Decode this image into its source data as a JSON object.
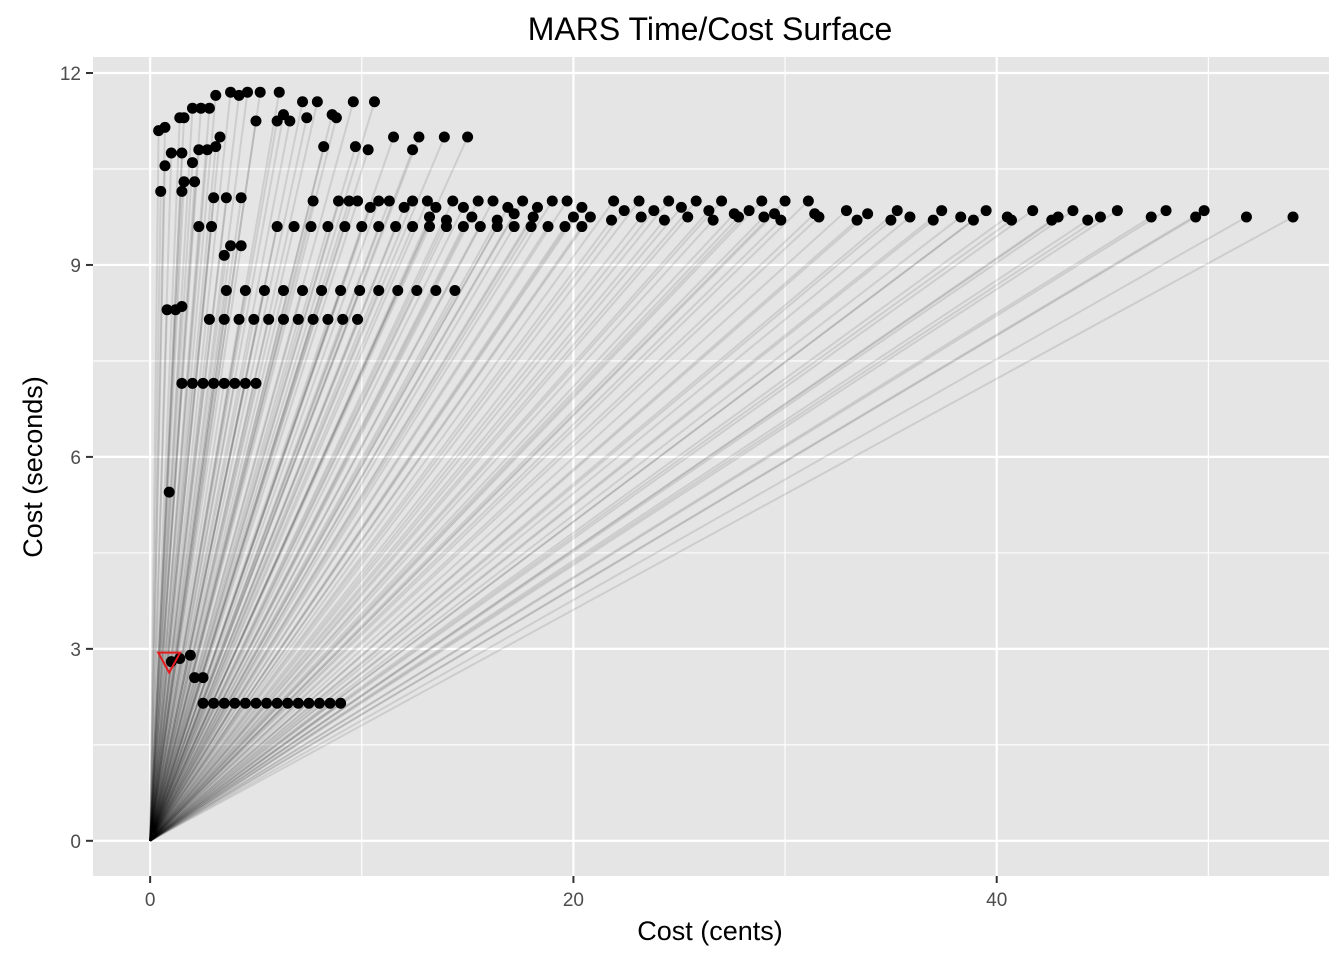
{
  "chart_data": {
    "type": "scatter",
    "title": "MARS Time/Cost Surface",
    "xlabel": "Cost (cents)",
    "ylabel": "Cost (seconds)",
    "xlim": [
      -2.7,
      55.7
    ],
    "ylim": [
      -0.55,
      12.25
    ],
    "x_ticks": [
      0,
      20,
      40
    ],
    "y_ticks": [
      0,
      3,
      6,
      9,
      12
    ],
    "grid": true,
    "legend": "none",
    "colors": {
      "panel": "#e5e5e5",
      "grid": "#ffffff",
      "point": "#000000",
      "segment": "#000000",
      "highlight": "#e41a1c"
    },
    "segment_origin": [
      0,
      0
    ],
    "highlight": {
      "shape": "down-triangle",
      "x": 0.9,
      "y": 2.8
    },
    "series": [
      {
        "values": [
          {
            "x": 1.0,
            "y": 2.8
          },
          {
            "x": 1.4,
            "y": 2.85
          },
          {
            "x": 1.9,
            "y": 2.9
          },
          {
            "x": 2.1,
            "y": 2.55
          },
          {
            "x": 2.5,
            "y": 2.55
          },
          {
            "x": 2.5,
            "y": 2.15
          },
          {
            "x": 3.0,
            "y": 2.15
          },
          {
            "x": 3.5,
            "y": 2.15
          },
          {
            "x": 4.0,
            "y": 2.15
          },
          {
            "x": 4.5,
            "y": 2.15
          },
          {
            "x": 5.0,
            "y": 2.15
          },
          {
            "x": 5.5,
            "y": 2.15
          },
          {
            "x": 6.0,
            "y": 2.15
          },
          {
            "x": 6.5,
            "y": 2.15
          },
          {
            "x": 7.0,
            "y": 2.15
          },
          {
            "x": 7.5,
            "y": 2.15
          },
          {
            "x": 8.0,
            "y": 2.15
          },
          {
            "x": 8.5,
            "y": 2.15
          },
          {
            "x": 9.0,
            "y": 2.15
          },
          {
            "x": 0.9,
            "y": 5.45
          },
          {
            "x": 1.5,
            "y": 7.15
          },
          {
            "x": 2.0,
            "y": 7.15
          },
          {
            "x": 2.5,
            "y": 7.15
          },
          {
            "x": 3.0,
            "y": 7.15
          },
          {
            "x": 3.5,
            "y": 7.15
          },
          {
            "x": 4.0,
            "y": 7.15
          },
          {
            "x": 4.5,
            "y": 7.15
          },
          {
            "x": 5.0,
            "y": 7.15
          },
          {
            "x": 0.8,
            "y": 8.3
          },
          {
            "x": 1.2,
            "y": 8.3
          },
          {
            "x": 1.5,
            "y": 8.35
          },
          {
            "x": 2.8,
            "y": 8.15
          },
          {
            "x": 3.5,
            "y": 8.15
          },
          {
            "x": 4.2,
            "y": 8.15
          },
          {
            "x": 4.9,
            "y": 8.15
          },
          {
            "x": 5.6,
            "y": 8.15
          },
          {
            "x": 6.3,
            "y": 8.15
          },
          {
            "x": 7.0,
            "y": 8.15
          },
          {
            "x": 7.7,
            "y": 8.15
          },
          {
            "x": 8.4,
            "y": 8.15
          },
          {
            "x": 9.1,
            "y": 8.15
          },
          {
            "x": 9.8,
            "y": 8.15
          },
          {
            "x": 3.6,
            "y": 8.6
          },
          {
            "x": 4.5,
            "y": 8.6
          },
          {
            "x": 5.4,
            "y": 8.6
          },
          {
            "x": 6.3,
            "y": 8.6
          },
          {
            "x": 7.2,
            "y": 8.6
          },
          {
            "x": 8.1,
            "y": 8.6
          },
          {
            "x": 9.0,
            "y": 8.6
          },
          {
            "x": 9.9,
            "y": 8.6
          },
          {
            "x": 10.8,
            "y": 8.6
          },
          {
            "x": 11.7,
            "y": 8.6
          },
          {
            "x": 12.6,
            "y": 8.6
          },
          {
            "x": 13.5,
            "y": 8.6
          },
          {
            "x": 14.4,
            "y": 8.6
          },
          {
            "x": 3.5,
            "y": 9.15
          },
          {
            "x": 3.8,
            "y": 9.3
          },
          {
            "x": 4.3,
            "y": 9.3
          },
          {
            "x": 2.3,
            "y": 9.6
          },
          {
            "x": 2.9,
            "y": 9.6
          },
          {
            "x": 0.5,
            "y": 10.15
          },
          {
            "x": 1.5,
            "y": 10.15
          },
          {
            "x": 1.6,
            "y": 10.3
          },
          {
            "x": 2.1,
            "y": 10.3
          },
          {
            "x": 3.0,
            "y": 10.05
          },
          {
            "x": 3.6,
            "y": 10.05
          },
          {
            "x": 4.3,
            "y": 10.05
          },
          {
            "x": 0.7,
            "y": 10.55
          },
          {
            "x": 1.0,
            "y": 10.75
          },
          {
            "x": 1.5,
            "y": 10.75
          },
          {
            "x": 2.0,
            "y": 10.6
          },
          {
            "x": 2.3,
            "y": 10.8
          },
          {
            "x": 2.7,
            "y": 10.8
          },
          {
            "x": 3.1,
            "y": 10.85
          },
          {
            "x": 3.3,
            "y": 11.0
          },
          {
            "x": 0.4,
            "y": 11.1
          },
          {
            "x": 0.7,
            "y": 11.15
          },
          {
            "x": 1.4,
            "y": 11.3
          },
          {
            "x": 1.6,
            "y": 11.3
          },
          {
            "x": 2.0,
            "y": 11.45
          },
          {
            "x": 2.4,
            "y": 11.45
          },
          {
            "x": 2.8,
            "y": 11.45
          },
          {
            "x": 3.1,
            "y": 11.65
          },
          {
            "x": 3.8,
            "y": 11.7
          },
          {
            "x": 4.2,
            "y": 11.65
          },
          {
            "x": 4.6,
            "y": 11.7
          },
          {
            "x": 5.2,
            "y": 11.7
          },
          {
            "x": 5.0,
            "y": 11.25
          },
          {
            "x": 6.1,
            "y": 11.7
          },
          {
            "x": 6.0,
            "y": 11.25
          },
          {
            "x": 6.3,
            "y": 11.35
          },
          {
            "x": 6.6,
            "y": 11.25
          },
          {
            "x": 7.2,
            "y": 11.55
          },
          {
            "x": 7.4,
            "y": 11.3
          },
          {
            "x": 7.9,
            "y": 11.55
          },
          {
            "x": 8.2,
            "y": 10.85
          },
          {
            "x": 8.6,
            "y": 11.35
          },
          {
            "x": 8.8,
            "y": 11.3
          },
          {
            "x": 9.6,
            "y": 11.55
          },
          {
            "x": 9.7,
            "y": 10.85
          },
          {
            "x": 10.3,
            "y": 10.8
          },
          {
            "x": 10.6,
            "y": 11.55
          },
          {
            "x": 11.5,
            "y": 11.0
          },
          {
            "x": 12.4,
            "y": 10.8
          },
          {
            "x": 12.7,
            "y": 11.0
          },
          {
            "x": 13.9,
            "y": 11.0
          },
          {
            "x": 15.0,
            "y": 11.0
          },
          {
            "x": 7.7,
            "y": 10.0
          },
          {
            "x": 8.9,
            "y": 10.0
          },
          {
            "x": 9.4,
            "y": 10.0
          },
          {
            "x": 9.8,
            "y": 10.0
          },
          {
            "x": 10.4,
            "y": 9.9
          },
          {
            "x": 10.8,
            "y": 10.0
          },
          {
            "x": 11.3,
            "y": 10.0
          },
          {
            "x": 12.0,
            "y": 9.9
          },
          {
            "x": 12.4,
            "y": 10.0
          },
          {
            "x": 13.1,
            "y": 10.0
          },
          {
            "x": 13.5,
            "y": 9.9
          },
          {
            "x": 14.3,
            "y": 10.0
          },
          {
            "x": 14.8,
            "y": 9.9
          },
          {
            "x": 15.5,
            "y": 10.0
          },
          {
            "x": 16.2,
            "y": 10.0
          },
          {
            "x": 16.9,
            "y": 9.9
          },
          {
            "x": 17.6,
            "y": 10.0
          },
          {
            "x": 18.3,
            "y": 9.9
          },
          {
            "x": 19.0,
            "y": 10.0
          },
          {
            "x": 19.7,
            "y": 10.0
          },
          {
            "x": 20.4,
            "y": 9.9
          },
          {
            "x": 21.9,
            "y": 10.0
          },
          {
            "x": 22.4,
            "y": 9.85
          },
          {
            "x": 23.1,
            "y": 10.0
          },
          {
            "x": 23.8,
            "y": 9.85
          },
          {
            "x": 24.5,
            "y": 10.0
          },
          {
            "x": 25.1,
            "y": 9.9
          },
          {
            "x": 25.8,
            "y": 10.0
          },
          {
            "x": 26.4,
            "y": 9.85
          },
          {
            "x": 27.0,
            "y": 10.0
          },
          {
            "x": 27.6,
            "y": 9.8
          },
          {
            "x": 28.3,
            "y": 9.85
          },
          {
            "x": 28.9,
            "y": 10.0
          },
          {
            "x": 29.5,
            "y": 9.8
          },
          {
            "x": 30.0,
            "y": 10.0
          },
          {
            "x": 31.1,
            "y": 10.0
          },
          {
            "x": 31.4,
            "y": 9.8
          },
          {
            "x": 6.0,
            "y": 9.6
          },
          {
            "x": 6.8,
            "y": 9.6
          },
          {
            "x": 7.6,
            "y": 9.6
          },
          {
            "x": 8.4,
            "y": 9.6
          },
          {
            "x": 9.2,
            "y": 9.6
          },
          {
            "x": 10.0,
            "y": 9.6
          },
          {
            "x": 10.8,
            "y": 9.6
          },
          {
            "x": 11.6,
            "y": 9.6
          },
          {
            "x": 12.4,
            "y": 9.6
          },
          {
            "x": 13.2,
            "y": 9.6
          },
          {
            "x": 14.0,
            "y": 9.6
          },
          {
            "x": 14.8,
            "y": 9.6
          },
          {
            "x": 15.6,
            "y": 9.6
          },
          {
            "x": 16.4,
            "y": 9.6
          },
          {
            "x": 17.2,
            "y": 9.6
          },
          {
            "x": 18.0,
            "y": 9.6
          },
          {
            "x": 18.8,
            "y": 9.6
          },
          {
            "x": 19.6,
            "y": 9.6
          },
          {
            "x": 20.4,
            "y": 9.6
          },
          {
            "x": 20.8,
            "y": 9.75
          },
          {
            "x": 13.2,
            "y": 9.75
          },
          {
            "x": 14.0,
            "y": 9.7
          },
          {
            "x": 15.2,
            "y": 9.75
          },
          {
            "x": 16.4,
            "y": 9.7
          },
          {
            "x": 17.2,
            "y": 9.8
          },
          {
            "x": 18.1,
            "y": 9.75
          },
          {
            "x": 20.0,
            "y": 9.75
          },
          {
            "x": 21.8,
            "y": 9.7
          },
          {
            "x": 23.2,
            "y": 9.75
          },
          {
            "x": 24.3,
            "y": 9.7
          },
          {
            "x": 25.4,
            "y": 9.75
          },
          {
            "x": 26.6,
            "y": 9.7
          },
          {
            "x": 27.8,
            "y": 9.75
          },
          {
            "x": 29.0,
            "y": 9.75
          },
          {
            "x": 29.8,
            "y": 9.7
          },
          {
            "x": 31.6,
            "y": 9.75
          },
          {
            "x": 32.9,
            "y": 9.85
          },
          {
            "x": 33.4,
            "y": 9.7
          },
          {
            "x": 33.9,
            "y": 9.8
          },
          {
            "x": 35.0,
            "y": 9.7
          },
          {
            "x": 35.3,
            "y": 9.85
          },
          {
            "x": 35.9,
            "y": 9.75
          },
          {
            "x": 37.0,
            "y": 9.7
          },
          {
            "x": 37.4,
            "y": 9.85
          },
          {
            "x": 38.3,
            "y": 9.75
          },
          {
            "x": 38.9,
            "y": 9.7
          },
          {
            "x": 39.5,
            "y": 9.85
          },
          {
            "x": 40.5,
            "y": 9.75
          },
          {
            "x": 40.7,
            "y": 9.7
          },
          {
            "x": 41.7,
            "y": 9.85
          },
          {
            "x": 42.6,
            "y": 9.7
          },
          {
            "x": 42.9,
            "y": 9.75
          },
          {
            "x": 43.6,
            "y": 9.85
          },
          {
            "x": 44.3,
            "y": 9.7
          },
          {
            "x": 44.9,
            "y": 9.75
          },
          {
            "x": 45.7,
            "y": 9.85
          },
          {
            "x": 47.3,
            "y": 9.75
          },
          {
            "x": 48.0,
            "y": 9.85
          },
          {
            "x": 49.4,
            "y": 9.75
          },
          {
            "x": 49.8,
            "y": 9.85
          },
          {
            "x": 51.8,
            "y": 9.75
          },
          {
            "x": 54.0,
            "y": 9.75
          }
        ]
      }
    ]
  }
}
